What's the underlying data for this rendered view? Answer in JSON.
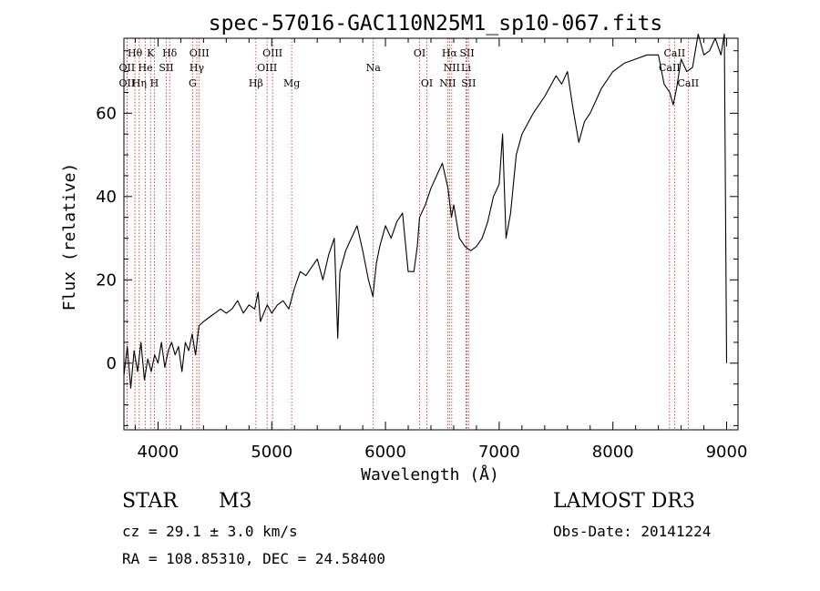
{
  "chart_data": {
    "type": "line",
    "title": "spec-57016-GAC110N25M1_sp10-067.fits",
    "xlabel": "Wavelength (Å)",
    "ylabel": "Flux (relative)",
    "xlim": [
      3700,
      9100
    ],
    "ylim": [
      -16,
      78
    ],
    "xticks": [
      4000,
      5000,
      6000,
      7000,
      8000,
      9000
    ],
    "yticks": [
      0,
      20,
      40,
      60
    ],
    "series": [
      {
        "name": "flux",
        "x": [
          3700,
          3730,
          3760,
          3790,
          3820,
          3850,
          3880,
          3910,
          3940,
          3970,
          4000,
          4030,
          4060,
          4090,
          4120,
          4150,
          4180,
          4210,
          4240,
          4270,
          4300,
          4330,
          4360,
          4400,
          4450,
          4500,
          4550,
          4600,
          4650,
          4700,
          4750,
          4800,
          4850,
          4880,
          4900,
          4930,
          4960,
          5000,
          5050,
          5100,
          5150,
          5200,
          5250,
          5300,
          5350,
          5400,
          5450,
          5500,
          5550,
          5580,
          5600,
          5650,
          5700,
          5750,
          5800,
          5850,
          5890,
          5920,
          5950,
          6000,
          6050,
          6100,
          6150,
          6200,
          6250,
          6280,
          6300,
          6350,
          6400,
          6450,
          6500,
          6550,
          6580,
          6600,
          6650,
          6700,
          6750,
          6800,
          6850,
          6900,
          6950,
          7000,
          7030,
          7060,
          7100,
          7150,
          7200,
          7300,
          7400,
          7500,
          7550,
          7600,
          7650,
          7700,
          7750,
          7800,
          7850,
          7900,
          8000,
          8100,
          8200,
          8300,
          8400,
          8450,
          8500,
          8530,
          8560,
          8600,
          8650,
          8700,
          8750,
          8800,
          8850,
          8900,
          8950,
          8980,
          9000
        ],
        "y": [
          -3,
          4,
          -6,
          3,
          -2,
          5,
          -4,
          1,
          -2,
          2,
          0,
          5,
          -1,
          3,
          5,
          2,
          4,
          -2,
          5,
          3,
          7,
          2,
          9,
          10,
          11,
          12,
          13,
          12,
          13,
          15,
          12,
          14,
          13,
          17,
          10,
          12,
          14,
          12,
          14,
          15,
          13,
          18,
          22,
          21,
          23,
          25,
          20,
          26,
          30,
          6,
          22,
          27,
          30,
          33,
          27,
          20,
          16,
          24,
          28,
          33,
          30,
          34,
          36,
          22,
          22,
          28,
          35,
          38,
          42,
          45,
          48,
          42,
          35,
          38,
          30,
          28,
          27,
          28,
          30,
          34,
          40,
          43,
          55,
          30,
          36,
          50,
          55,
          60,
          64,
          69,
          67,
          70,
          61,
          53,
          58,
          60,
          63,
          66,
          70,
          72,
          73,
          74,
          74,
          67,
          65,
          62,
          66,
          73,
          70,
          71,
          79,
          74,
          75,
          78,
          74,
          79,
          0
        ]
      }
    ],
    "lines": [
      {
        "label": "Hθ",
        "x": 3797,
        "row": 1
      },
      {
        "label": "K",
        "x": 3934,
        "row": 1
      },
      {
        "label": "Hδ",
        "x": 4102,
        "row": 1
      },
      {
        "label": "OIII",
        "x": 4363,
        "row": 1
      },
      {
        "label": "OIII",
        "x": 5007,
        "row": 1
      },
      {
        "label": "OI",
        "x": 6300,
        "row": 1
      },
      {
        "label": "Hα",
        "x": 6563,
        "row": 1
      },
      {
        "label": "SII",
        "x": 6717,
        "row": 1
      },
      {
        "label": "CaII",
        "x": 8542,
        "row": 1
      },
      {
        "label": "OII",
        "x": 3727,
        "row": 2
      },
      {
        "label": "He",
        "x": 3889,
        "row": 2
      },
      {
        "label": "SII",
        "x": 4072,
        "row": 2
      },
      {
        "label": "Hγ",
        "x": 4341,
        "row": 2
      },
      {
        "label": "OIII",
        "x": 4959,
        "row": 2
      },
      {
        "label": "Na",
        "x": 5893,
        "row": 2
      },
      {
        "label": "NII",
        "x": 6583,
        "row": 2
      },
      {
        "label": "Li",
        "x": 6708,
        "row": 2
      },
      {
        "label": "CaII",
        "x": 8498,
        "row": 2
      },
      {
        "label": "OII",
        "x": 3727,
        "row": 3
      },
      {
        "label": "Hη",
        "x": 3835,
        "row": 3
      },
      {
        "label": "H",
        "x": 3968,
        "row": 3
      },
      {
        "label": "G",
        "x": 4304,
        "row": 3
      },
      {
        "label": "Hβ",
        "x": 4861,
        "row": 3
      },
      {
        "label": "Mg",
        "x": 5175,
        "row": 3
      },
      {
        "label": "OI",
        "x": 6364,
        "row": 3
      },
      {
        "label": "NII",
        "x": 6548,
        "row": 3
      },
      {
        "label": "SII",
        "x": 6731,
        "row": 3
      },
      {
        "label": "CaII",
        "x": 8662,
        "row": 3
      }
    ]
  },
  "info": {
    "obj_class": "STAR",
    "subclass": "M3",
    "survey": "LAMOST DR3",
    "redshift": "cz = 29.1 ± 3.0 km/s",
    "obs_date": "Obs-Date: 20141224",
    "coords": "RA = 108.85310, DEC =  24.58400"
  },
  "colors": {
    "line_marker": "#cc2222",
    "axis": "#000000",
    "spectrum": "#000000"
  }
}
